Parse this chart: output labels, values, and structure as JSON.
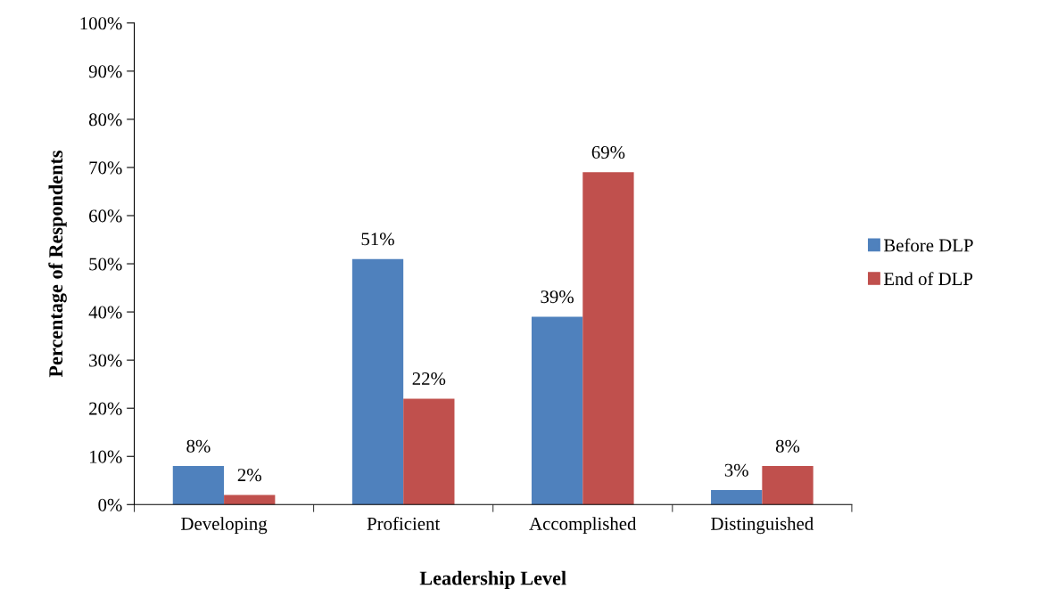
{
  "chart_data": {
    "type": "bar",
    "xlabel": "Leadership Level",
    "ylabel": "Percentage of Respondents",
    "categories": [
      "Developing",
      "Proficient",
      "Accomplished",
      "Distinguished"
    ],
    "series": [
      {
        "name": "Before DLP",
        "color": "#4f81bd",
        "values": [
          8,
          51,
          39,
          3
        ],
        "value_labels": [
          "8%",
          "51%",
          "39%",
          "3%"
        ]
      },
      {
        "name": "End of DLP",
        "color": "#c0504d",
        "values": [
          2,
          22,
          69,
          8
        ],
        "value_labels": [
          "2%",
          "22%",
          "69%",
          "8%"
        ]
      }
    ],
    "ylim": [
      0,
      100
    ],
    "yticks": [
      {
        "value": 0,
        "label": "0%"
      },
      {
        "value": 10,
        "label": "10%"
      },
      {
        "value": 20,
        "label": "20%"
      },
      {
        "value": 30,
        "label": "30%"
      },
      {
        "value": 40,
        "label": "40%"
      },
      {
        "value": 50,
        "label": "50%"
      },
      {
        "value": 60,
        "label": "60%"
      },
      {
        "value": 70,
        "label": "70%"
      },
      {
        "value": 80,
        "label": "80%"
      },
      {
        "value": 90,
        "label": "90%"
      },
      {
        "value": 100,
        "label": "100%"
      }
    ],
    "grid": false,
    "legend": "right"
  }
}
